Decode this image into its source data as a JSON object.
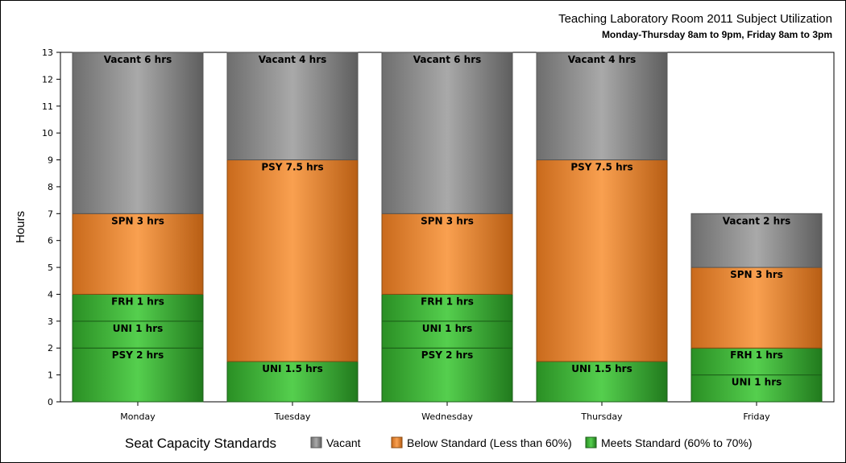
{
  "chart_data": {
    "type": "bar",
    "stacked": true,
    "title": "Teaching Laboratory Room 2011 Subject Utilization",
    "subtitle": "Monday-Thursday 8am to 9pm, Friday 8am to 3pm",
    "ylabel": "Hours",
    "xlabel": "",
    "ylim": [
      0,
      13
    ],
    "yticks": [
      0,
      1,
      2,
      3,
      4,
      5,
      6,
      7,
      8,
      9,
      10,
      11,
      12,
      13
    ],
    "categories": [
      "Monday",
      "Tuesday",
      "Wednesday",
      "Thursday",
      "Friday"
    ],
    "legend": {
      "title": "Seat Capacity Standards",
      "position": "bottom",
      "items": [
        {
          "key": "vacant",
          "label": "Vacant",
          "color": "#999999"
        },
        {
          "key": "below",
          "label": "Below Standard (Less than 60%)",
          "color": "#f39b45"
        },
        {
          "key": "meets",
          "label": "Meets Standard (60% to 70%)",
          "color": "#4cc44a"
        }
      ]
    },
    "bars": [
      {
        "category": "Monday",
        "segments": [
          {
            "label": "PSY 2 hrs",
            "value": 2,
            "standard": "meets"
          },
          {
            "label": "UNI 1 hrs",
            "value": 1,
            "standard": "meets"
          },
          {
            "label": "FRH 1 hrs",
            "value": 1,
            "standard": "meets"
          },
          {
            "label": "SPN 3 hrs",
            "value": 3,
            "standard": "below"
          },
          {
            "label": "Vacant 6 hrs",
            "value": 6,
            "standard": "vacant"
          }
        ]
      },
      {
        "category": "Tuesday",
        "segments": [
          {
            "label": "UNI 1.5 hrs",
            "value": 1.5,
            "standard": "meets"
          },
          {
            "label": "PSY 7.5 hrs",
            "value": 7.5,
            "standard": "below"
          },
          {
            "label": "Vacant 4 hrs",
            "value": 4,
            "standard": "vacant"
          }
        ]
      },
      {
        "category": "Wednesday",
        "segments": [
          {
            "label": "PSY 2 hrs",
            "value": 2,
            "standard": "meets"
          },
          {
            "label": "UNI 1 hrs",
            "value": 1,
            "standard": "meets"
          },
          {
            "label": "FRH 1 hrs",
            "value": 1,
            "standard": "meets"
          },
          {
            "label": "SPN 3 hrs",
            "value": 3,
            "standard": "below"
          },
          {
            "label": "Vacant 6 hrs",
            "value": 6,
            "standard": "vacant"
          }
        ]
      },
      {
        "category": "Thursday",
        "segments": [
          {
            "label": "UNI 1.5 hrs",
            "value": 1.5,
            "standard": "meets"
          },
          {
            "label": "PSY 7.5 hrs",
            "value": 7.5,
            "standard": "below"
          },
          {
            "label": "Vacant 4 hrs",
            "value": 4,
            "standard": "vacant"
          }
        ]
      },
      {
        "category": "Friday",
        "segments": [
          {
            "label": "UNI 1 hrs",
            "value": 1,
            "standard": "meets"
          },
          {
            "label": "FRH 1 hrs",
            "value": 1,
            "standard": "meets"
          },
          {
            "label": "SPN 3 hrs",
            "value": 3,
            "standard": "below"
          },
          {
            "label": "Vacant 2 hrs",
            "value": 2,
            "standard": "vacant"
          }
        ]
      }
    ]
  }
}
